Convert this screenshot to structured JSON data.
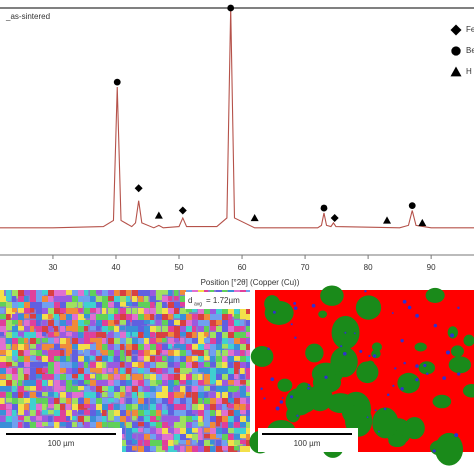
{
  "chart_data": {
    "type": "line",
    "xlabel": "Position [°2θ] (Copper (Cu))",
    "x": [
      21.6,
      30,
      38,
      39.6,
      40.2,
      40.8,
      42.5,
      43.1,
      43.6,
      44.1,
      46,
      46.8,
      47.5,
      50,
      50.6,
      51.2,
      56,
      57.6,
      58.2,
      58.8,
      62,
      72,
      72.6,
      73,
      73.4,
      74.1,
      74.5,
      74.9,
      85,
      86.4,
      87,
      87.6,
      90,
      96.8
    ],
    "series": [
      {
        "name": "_as-sintered",
        "color": "#b5524a",
        "values": [
          11,
          11,
          11.5,
          14,
          68,
          14,
          11.5,
          13,
          22,
          13,
          11,
          12,
          11,
          11.5,
          15,
          11.5,
          11.5,
          15,
          100,
          15,
          11,
          11,
          12,
          17,
          12,
          11.5,
          13,
          11.5,
          11,
          12,
          18,
          12,
          11,
          11
        ]
      }
    ],
    "xlim": [
      21.6,
      96.8
    ],
    "xticks": [
      30,
      40,
      50,
      60,
      70,
      80,
      90
    ],
    "ylim": [
      0,
      100
    ],
    "legend": [
      {
        "label": "Fe",
        "symbol": "diamond",
        "x": [
          43.6,
          50.6,
          74.7
        ],
        "y": [
          27,
          18,
          15
        ]
      },
      {
        "label": "Be",
        "symbol": "circle",
        "x": [
          40.2,
          58.2,
          73,
          87
        ],
        "y": [
          70,
          100,
          19,
          20
        ]
      },
      {
        "label": "H",
        "symbol": "triangle",
        "x": [
          46.8,
          62,
          83,
          88.6
        ],
        "y": [
          16,
          15,
          14,
          13
        ]
      }
    ]
  },
  "micrographs": [
    {
      "annotation": "d",
      "annotation_sub": "avg",
      "annotation_value": "= 1.72µm",
      "scale_bar": "100 µm"
    },
    {
      "scale_bar": "100 µm"
    }
  ]
}
